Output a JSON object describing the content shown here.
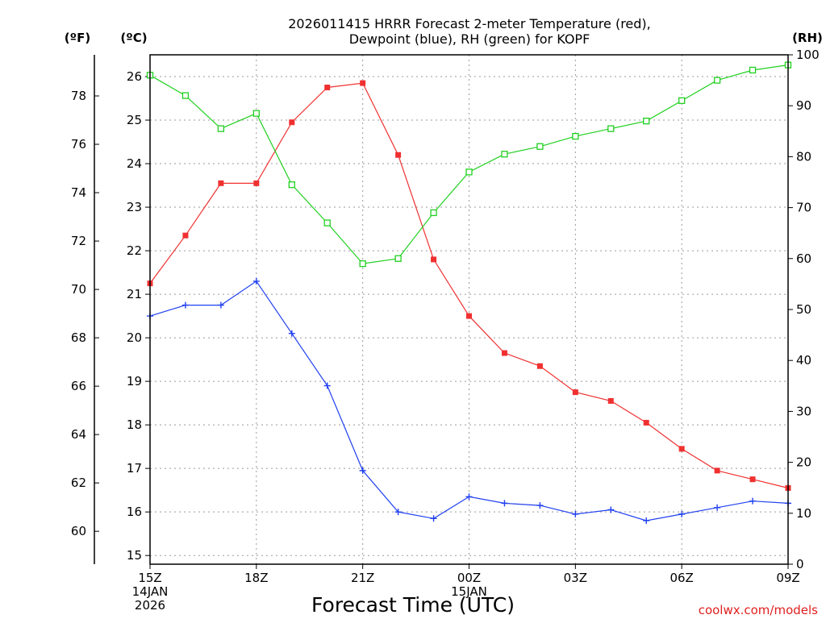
{
  "chart_data": {
    "type": "line",
    "title_lines": [
      "2026011415 HRRR Forecast 2-meter Temperature (red),",
      "Dewpoint (blue), RH (green) for KOPF"
    ],
    "xlabel": "Forecast Time (UTC)",
    "credit": "coolwx.com/models",
    "units": {
      "fahrenheit": "(ºF)",
      "celsius": "(ºC)",
      "rh": "(RH)"
    },
    "x": [
      0,
      1,
      2,
      3,
      4,
      5,
      6,
      7,
      8,
      9,
      10,
      11,
      12,
      13,
      14,
      15,
      16,
      17,
      18
    ],
    "x_ticks": [
      {
        "x": 0,
        "lines": [
          "15Z",
          "14JAN",
          "2026"
        ]
      },
      {
        "x": 3,
        "lines": [
          "18Z"
        ]
      },
      {
        "x": 6,
        "lines": [
          "21Z"
        ]
      },
      {
        "x": 9,
        "lines": [
          "00Z",
          "15JAN"
        ]
      },
      {
        "x": 12,
        "lines": [
          "03Z"
        ]
      },
      {
        "x": 15,
        "lines": [
          "06Z"
        ]
      },
      {
        "x": 18,
        "lines": [
          "09Z"
        ]
      }
    ],
    "ylim_c": [
      14.8,
      26.5
    ],
    "ylim_rh": [
      0,
      100
    ],
    "yticks_c": [
      15,
      16,
      17,
      18,
      19,
      20,
      21,
      22,
      23,
      24,
      25,
      26
    ],
    "yticks_f": [
      60,
      62,
      64,
      66,
      68,
      70,
      72,
      74,
      76,
      78
    ],
    "yticks_rh": [
      0,
      10,
      20,
      30,
      40,
      50,
      60,
      70,
      80,
      90,
      100
    ],
    "grid": true,
    "series": [
      {
        "key": "temperature",
        "axis": "c",
        "color": "#f03030",
        "marker": "square-filled",
        "values": [
          21.25,
          22.35,
          23.55,
          23.55,
          24.95,
          25.75,
          25.85,
          24.2,
          21.8,
          20.5,
          19.65,
          19.35,
          18.75,
          18.55,
          18.05,
          17.45,
          16.95,
          16.75,
          16.55
        ]
      },
      {
        "key": "dewpoint",
        "axis": "c",
        "color": "#2040f0",
        "marker": "plus",
        "values": [
          20.5,
          20.75,
          20.75,
          21.3,
          20.1,
          18.9,
          16.95,
          16.0,
          15.85,
          16.35,
          16.2,
          16.15,
          15.95,
          16.05,
          15.8,
          15.95,
          16.1,
          16.25,
          16.2
        ]
      },
      {
        "key": "rh",
        "axis": "rh",
        "color": "#20d020",
        "marker": "square-open",
        "values": [
          96,
          92,
          85.5,
          88.5,
          74.5,
          67,
          59,
          60,
          69,
          77,
          80.5,
          82,
          84,
          85.5,
          87,
          91,
          95,
          97,
          98
        ]
      }
    ]
  }
}
